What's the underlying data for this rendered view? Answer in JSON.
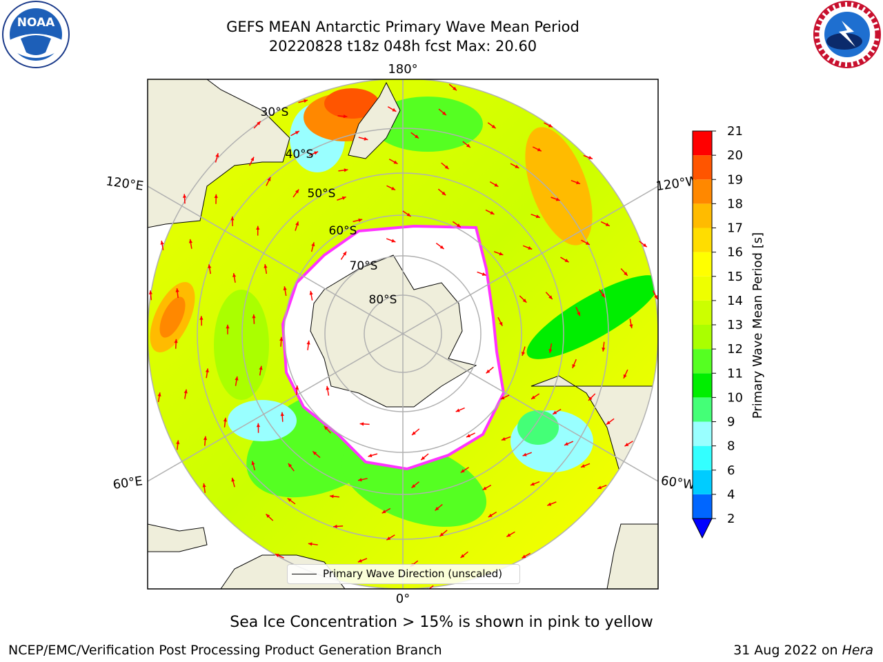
{
  "header": {
    "title_line1": "GEFS MEAN Antarctic Primary Wave Mean Period",
    "title_line2": "20220828 t18z 048h fcst   Max: 20.60"
  },
  "logos": {
    "noaa_text": "NOAA",
    "noaa_ring": "NATIONAL OCEANIC AND ATMOSPHERIC ADMINISTRATION · U.S. DEPARTMENT OF COMMERCE",
    "nws_ring": "NATIONAL WEATHER SERVICE"
  },
  "map": {
    "longitude_labels": {
      "top": "180°",
      "bottom": "0°",
      "upper_left": "120°E",
      "lower_left": "60°E",
      "upper_right": "120°W",
      "lower_right": "60°W"
    },
    "latitude_labels": [
      "30°S",
      "40°S",
      "50°S",
      "60°S",
      "70°S",
      "80°S"
    ],
    "legend_label": "Primary Wave Direction (unscaled)",
    "colors": {
      "land": "#efeedb",
      "ice": "#ffffff",
      "ice_edge": "#ff33ff",
      "arrow": "#ff0000",
      "grid": "#b0b0b0"
    }
  },
  "colorbar": {
    "label": "Primary Wave Mean Period [s]",
    "ticks": [
      "2",
      "4",
      "6",
      "8",
      "9",
      "10",
      "11",
      "12",
      "13",
      "14",
      "15",
      "16",
      "17",
      "18",
      "19",
      "20",
      "21"
    ],
    "colors": [
      "#0066ff",
      "#00ccff",
      "#33ffff",
      "#99ffff",
      "#44ff77",
      "#00ee00",
      "#55ff22",
      "#aaff00",
      "#ccff00",
      "#eeff00",
      "#ffff00",
      "#ffdd00",
      "#ffbb00",
      "#ff8800",
      "#ff5500",
      "#ff0000"
    ],
    "extend_color": "#0000ff"
  },
  "subtitle": "Sea Ice Concentration > 15% is shown in pink to yellow",
  "footer": {
    "left": "NCEP/EMC/Verification Post Processing Product Generation Branch",
    "right_date": "31 Aug 2022 on",
    "right_host": "Hera"
  }
}
